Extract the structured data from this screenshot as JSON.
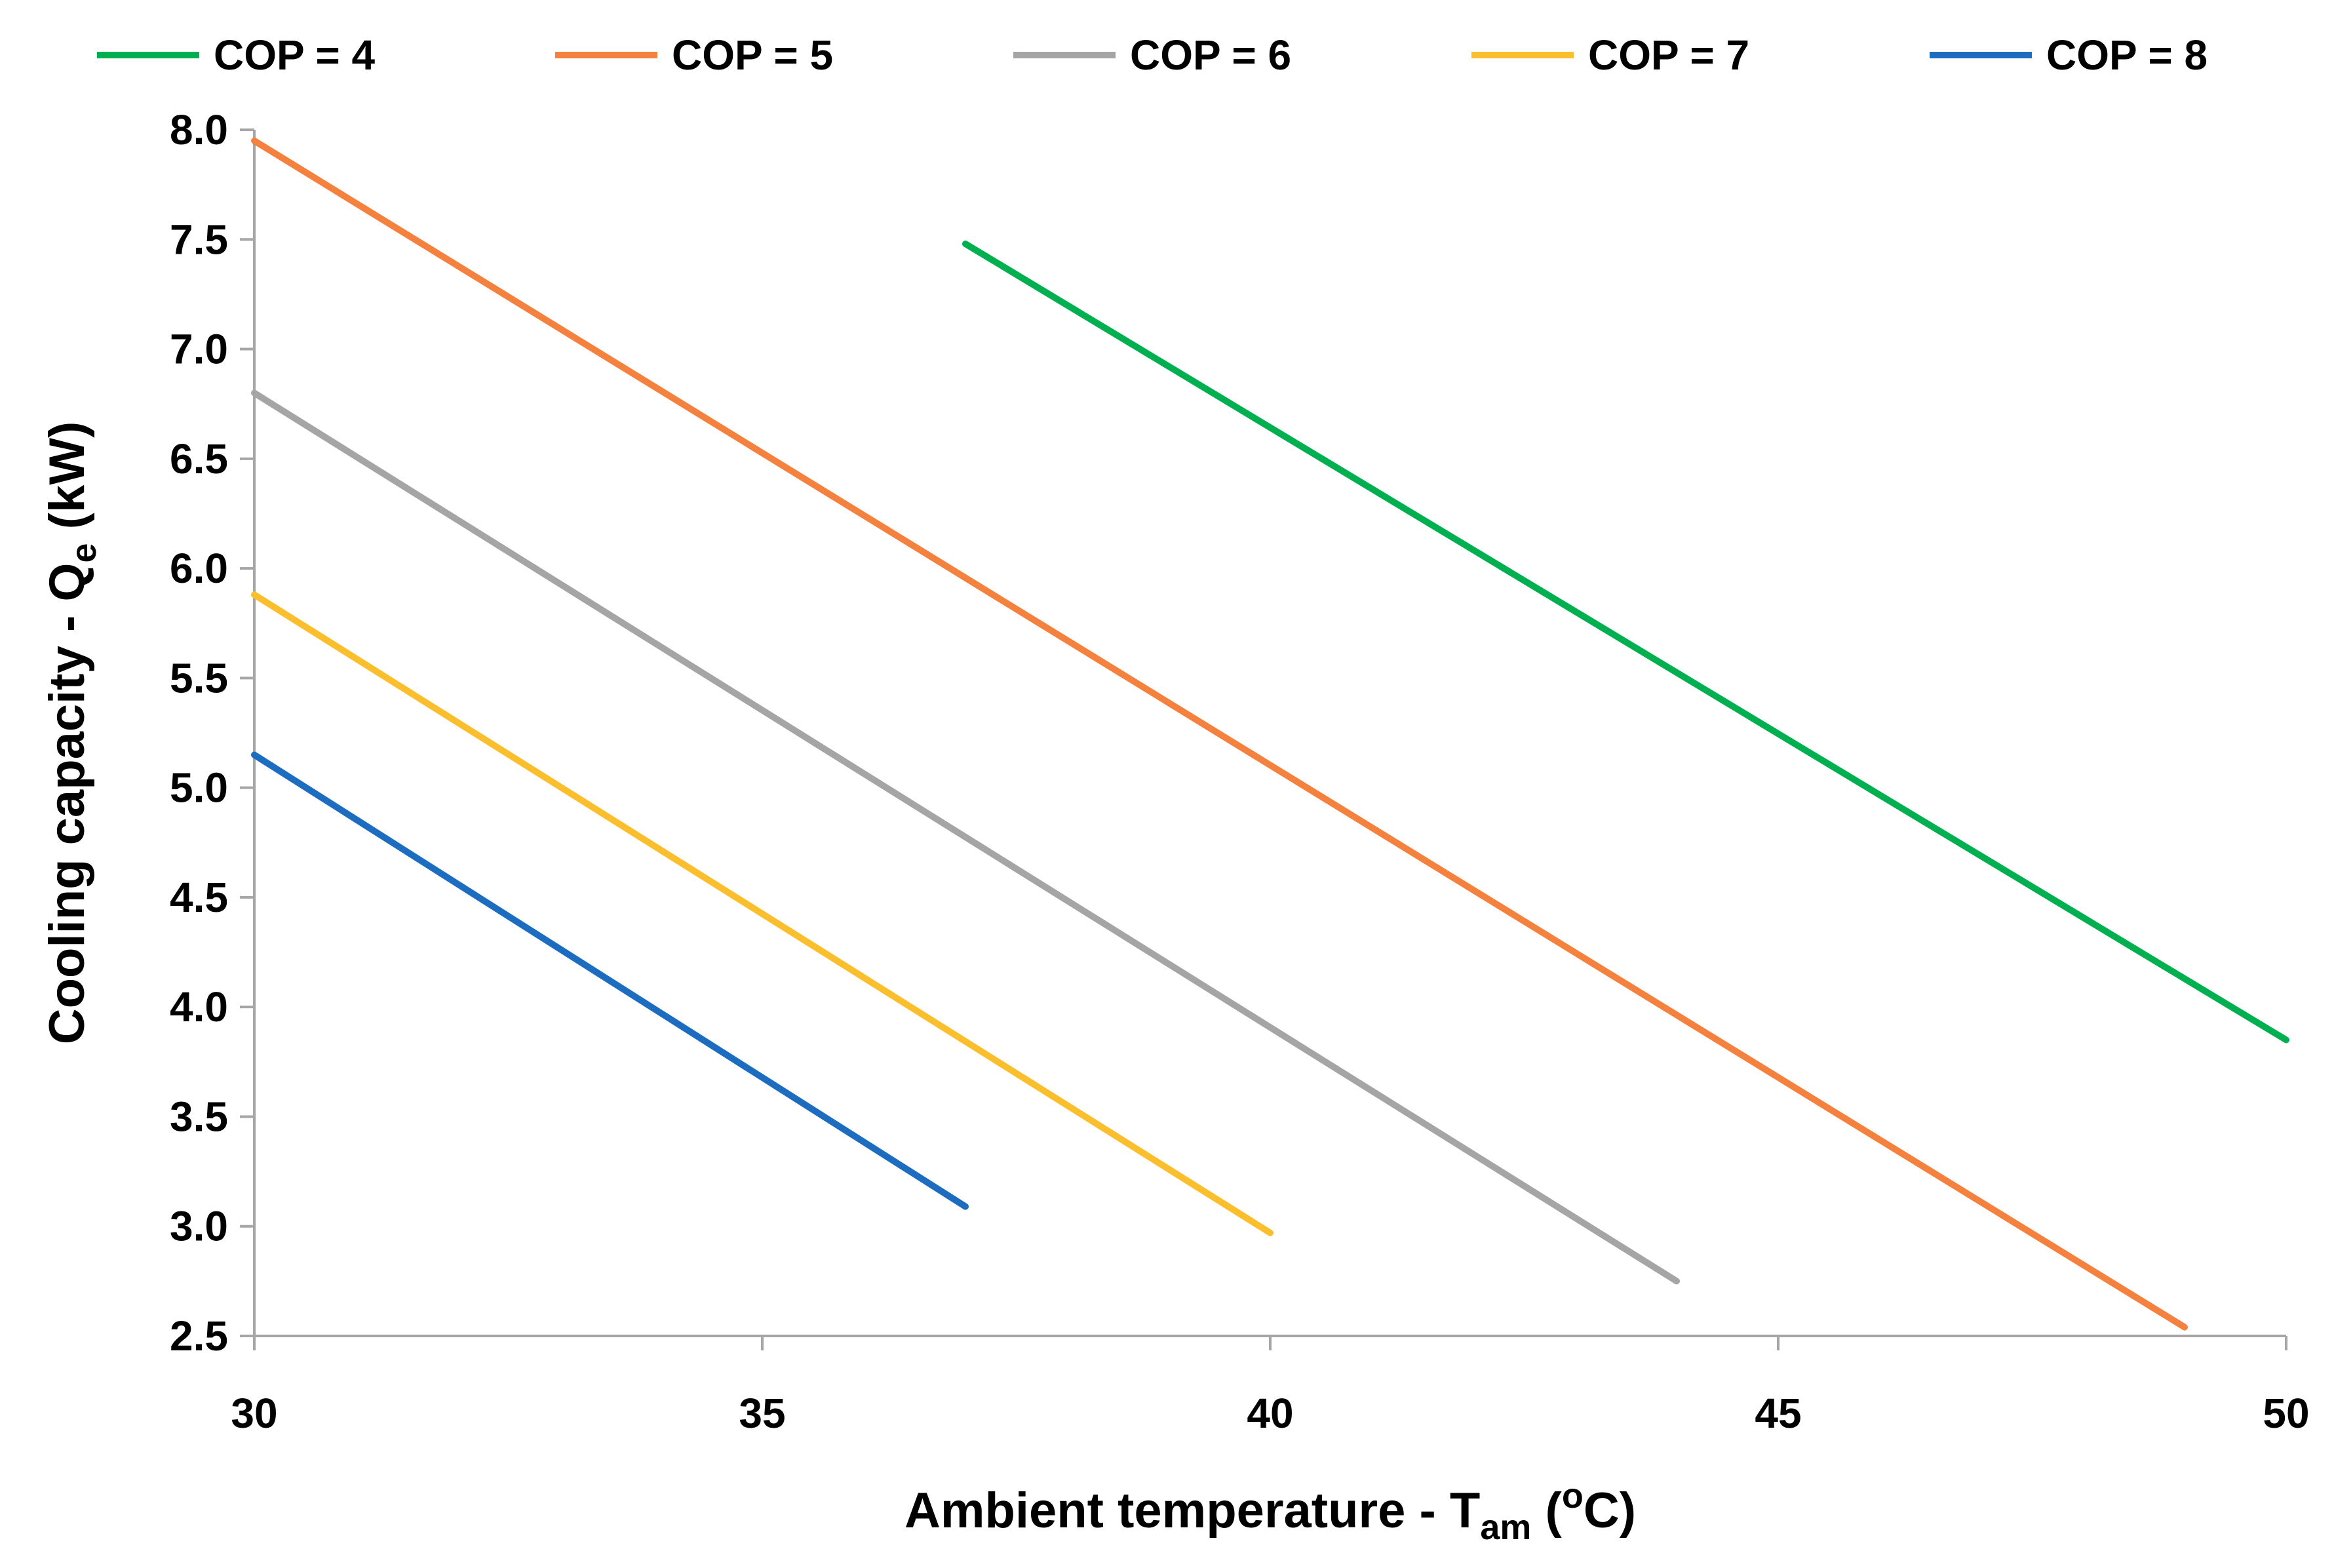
{
  "chart_data": {
    "type": "line",
    "xlabel": {
      "main": "Ambient temperature - T",
      "sub": "am",
      "open": " (",
      "sup": "o",
      "close": "C)"
    },
    "ylabel": {
      "main": "Cooling capacity - Q",
      "sub": "e",
      "close": " (kW)"
    },
    "xlim": [
      30,
      50
    ],
    "ylim": [
      2.5,
      8.0
    ],
    "x_ticks": [
      30,
      35,
      40,
      45,
      50
    ],
    "x_tick_labels": [
      "30",
      "35",
      "40",
      "45",
      "50"
    ],
    "y_ticks": [
      2.5,
      3.0,
      3.5,
      4.0,
      4.5,
      5.0,
      5.5,
      6.0,
      6.5,
      7.0,
      7.5,
      8.0
    ],
    "y_tick_labels": [
      "2.5",
      "3.0",
      "3.5",
      "4.0",
      "4.5",
      "5.0",
      "5.5",
      "6.0",
      "6.5",
      "7.0",
      "7.5",
      "8.0"
    ],
    "grid": false,
    "legend_position": "top",
    "series": [
      {
        "name": "COP = 4",
        "color": "#00b050",
        "x": [
          37,
          50
        ],
        "y": [
          7.48,
          3.85
        ]
      },
      {
        "name": "COP = 5",
        "color": "#f4813e",
        "x": [
          30,
          49
        ],
        "y": [
          7.95,
          2.54
        ]
      },
      {
        "name": "COP = 6",
        "color": "#a5a5a5",
        "x": [
          30,
          44
        ],
        "y": [
          6.8,
          2.75
        ]
      },
      {
        "name": "COP = 7",
        "color": "#fbbf2d",
        "x": [
          30,
          40
        ],
        "y": [
          5.88,
          2.97
        ]
      },
      {
        "name": "COP = 8",
        "color": "#1c6cc0",
        "x": [
          30,
          37
        ],
        "y": [
          5.15,
          3.09
        ]
      }
    ]
  }
}
